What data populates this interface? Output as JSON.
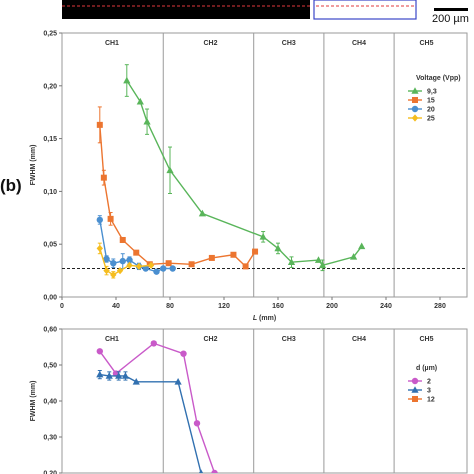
{
  "panel_label": "(b)",
  "scale_bar": {
    "label": "200 µm"
  },
  "colors": {
    "green": "#59b55a",
    "orange": "#ec7530",
    "blue": "#4a8fd0",
    "yellow": "#f5bd1f",
    "magenta": "#c95ac9",
    "steelblue": "#3170b0",
    "header_red": "#e0383b",
    "header_blue": "#3b45c8"
  },
  "chart_data": [
    {
      "type": "line",
      "xlabel": "L (mm)",
      "ylabel": "FWHM (mm)",
      "xlim": [
        0,
        300
      ],
      "ylim": [
        0,
        0.25
      ],
      "x_ticks": [
        "0",
        "40",
        "80",
        "120",
        "160",
        "200",
        "240",
        "280"
      ],
      "y_ticks": [
        "0,00",
        "0,05",
        "0,10",
        "0,15",
        "0,20",
        "0,25"
      ],
      "channels": [
        {
          "label": "CH1",
          "center": 37
        },
        {
          "label": "CH2",
          "center": 110
        },
        {
          "label": "CH3",
          "center": 168
        },
        {
          "label": "CH4",
          "center": 220
        },
        {
          "label": "CH5",
          "center": 270
        }
      ],
      "channel_boundaries": [
        75,
        142,
        194,
        246
      ],
      "reference_line": 0.027,
      "grid": false,
      "legend_title": "Voltage (Vpp)",
      "legend_position": "right",
      "series": [
        {
          "name": "9,3",
          "color_key": "green",
          "marker": "triangle",
          "x": [
            48,
            58,
            63,
            80,
            104,
            149,
            160,
            170,
            190,
            193,
            216,
            222
          ],
          "y": [
            0.205,
            0.185,
            0.166,
            0.12,
            0.079,
            0.057,
            0.046,
            0.033,
            0.035,
            0.03,
            0.038,
            0.048
          ],
          "err": [
            0.015,
            0.0,
            0.012,
            0.022,
            0.0,
            0.005,
            0.005,
            0.005,
            0.0,
            0.005,
            0.0,
            0.0
          ]
        },
        {
          "name": "15",
          "color_key": "orange",
          "marker": "square",
          "x": [
            28,
            31,
            36,
            45,
            55,
            65,
            79,
            96,
            111,
            127,
            136,
            143
          ],
          "y": [
            0.163,
            0.113,
            0.074,
            0.054,
            0.042,
            0.031,
            0.032,
            0.031,
            0.037,
            0.04,
            0.029,
            0.043
          ],
          "err": [
            0.017,
            0.007,
            0.006,
            0.0,
            0.0,
            0.0,
            0.0,
            0.0,
            0.0,
            0.0,
            0.0,
            0.0
          ]
        },
        {
          "name": "20",
          "color_key": "blue",
          "marker": "circle",
          "x": [
            28,
            33,
            38,
            45,
            50,
            57,
            62,
            70,
            75,
            82
          ],
          "y": [
            0.073,
            0.036,
            0.032,
            0.034,
            0.035,
            0.029,
            0.027,
            0.024,
            0.027,
            0.027
          ],
          "err": [
            0.004,
            0.003,
            0.004,
            0.007,
            0.003,
            0.003,
            0.0,
            0.0,
            0.0,
            0.0
          ]
        },
        {
          "name": "25",
          "color_key": "yellow",
          "marker": "diamond",
          "x": [
            28,
            33,
            38,
            43,
            50,
            57,
            66
          ],
          "y": [
            0.046,
            0.025,
            0.021,
            0.025,
            0.03,
            0.029,
            0.03
          ],
          "err": [
            0.005,
            0.004,
            0.003,
            0.0,
            0.0,
            0.0,
            0.0
          ]
        }
      ]
    },
    {
      "type": "line",
      "xlabel": "",
      "ylabel": "FWHM (mm)",
      "ylim": [
        0.2,
        0.62
      ],
      "y_ticks": [
        "0,20",
        "0,30",
        "0,40",
        "0,50",
        "0,60"
      ],
      "channels": [
        {
          "label": "CH1",
          "center": 37
        },
        {
          "label": "CH2",
          "center": 110
        },
        {
          "label": "CH3",
          "center": 168
        },
        {
          "label": "CH4",
          "center": 220
        },
        {
          "label": "CH5",
          "center": 270
        }
      ],
      "channel_boundaries": [
        75,
        142,
        194,
        246
      ],
      "legend_title": "d (µm)",
      "legend_position": "right",
      "series": [
        {
          "name": "2",
          "color_key": "magenta",
          "marker": "circle",
          "x": [
            28,
            40,
            68,
            90,
            100,
            113
          ],
          "y": [
            0.555,
            0.49,
            0.578,
            0.548,
            0.345,
            0.2
          ]
        },
        {
          "name": "3",
          "color_key": "steelblue",
          "marker": "triangle",
          "x": [
            28,
            35,
            42,
            47,
            55,
            86,
            103
          ],
          "y": [
            0.487,
            0.483,
            0.483,
            0.483,
            0.466,
            0.466,
            0.2
          ],
          "err": [
            0.012,
            0.012,
            0.012,
            0.012,
            0.0,
            0.0,
            0.0
          ]
        },
        {
          "name": "12",
          "color_key": "orange",
          "marker": "square",
          "x": [],
          "y": []
        }
      ]
    }
  ]
}
